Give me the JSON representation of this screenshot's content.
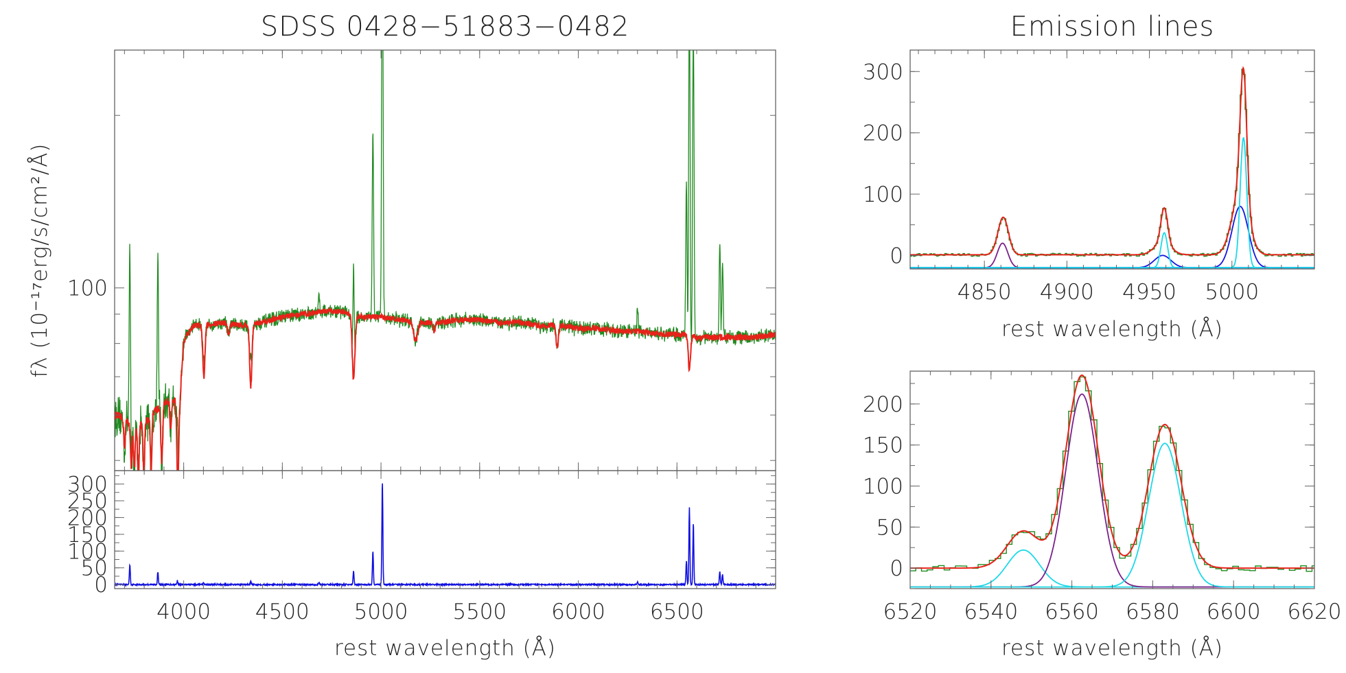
{
  "chart_data": [
    {
      "id": "main",
      "type": "line",
      "title": "SDSS 0428−51883−0482",
      "xlabel": "rest wavelength (Å)",
      "ylabel": "fλ (10⁻¹⁷erg/s/cm²/Å)",
      "xlim": [
        3650,
        7000
      ],
      "yscale": "log",
      "ylim": [
        48,
        260
      ],
      "y_tick_labels": [
        {
          "value": 100,
          "label": "100"
        }
      ],
      "x_tick_labels": [],
      "colors": {
        "data": "#1f8a1f",
        "model": "#e8221a"
      },
      "continuum": [
        [
          3650,
          60
        ],
        [
          3700,
          59
        ],
        [
          3750,
          57
        ],
        [
          3800,
          58
        ],
        [
          3850,
          61
        ],
        [
          3900,
          63
        ],
        [
          3950,
          64
        ],
        [
          3980,
          63
        ],
        [
          4000,
          81
        ],
        [
          4050,
          86
        ],
        [
          4100,
          86
        ],
        [
          4200,
          87
        ],
        [
          4300,
          86
        ],
        [
          4400,
          87
        ],
        [
          4500,
          89
        ],
        [
          4600,
          90
        ],
        [
          4700,
          91
        ],
        [
          4800,
          91
        ],
        [
          4860,
          90
        ],
        [
          4900,
          89
        ],
        [
          5000,
          89
        ],
        [
          5100,
          88
        ],
        [
          5200,
          87
        ],
        [
          5300,
          87
        ],
        [
          5400,
          88
        ],
        [
          5500,
          88
        ],
        [
          5600,
          87
        ],
        [
          5700,
          87
        ],
        [
          5800,
          86
        ],
        [
          5900,
          86
        ],
        [
          6000,
          85
        ],
        [
          6100,
          85
        ],
        [
          6200,
          84
        ],
        [
          6300,
          84
        ],
        [
          6400,
          83
        ],
        [
          6500,
          83
        ],
        [
          6560,
          83
        ],
        [
          6600,
          82
        ],
        [
          6700,
          82
        ],
        [
          6800,
          82
        ],
        [
          6900,
          82
        ],
        [
          7000,
          83
        ]
      ],
      "model_absorption": [
        {
          "x": 3700,
          "depth": 6,
          "width": 4
        },
        {
          "x": 3734,
          "depth": 9,
          "width": 4
        },
        {
          "x": 3750,
          "depth": 9,
          "width": 4
        },
        {
          "x": 3770,
          "depth": 10,
          "width": 4
        },
        {
          "x": 3798,
          "depth": 11,
          "width": 4
        },
        {
          "x": 3835,
          "depth": 12,
          "width": 4
        },
        {
          "x": 3889,
          "depth": 13,
          "width": 5
        },
        {
          "x": 3934,
          "depth": 7,
          "width": 4
        },
        {
          "x": 3970,
          "depth": 19,
          "width": 5
        },
        {
          "x": 4102,
          "depth": 16,
          "width": 6
        },
        {
          "x": 4227,
          "depth": 4,
          "width": 5
        },
        {
          "x": 4340,
          "depth": 19,
          "width": 6
        },
        {
          "x": 4861,
          "depth": 21,
          "width": 7
        },
        {
          "x": 5175,
          "depth": 6,
          "width": 10
        },
        {
          "x": 5269,
          "depth": 3,
          "width": 6
        },
        {
          "x": 5893,
          "depth": 7,
          "width": 6
        },
        {
          "x": 6563,
          "depth": 11,
          "width": 6
        }
      ],
      "emission_lines": [
        {
          "x": 3727,
          "peak": 64
        },
        {
          "x": 3869,
          "peak": 52
        },
        {
          "x": 3968,
          "peak": 12
        },
        {
          "x": 4101,
          "peak": 6
        },
        {
          "x": 4340,
          "peak": 10
        },
        {
          "x": 4686,
          "peak": 7
        },
        {
          "x": 4861,
          "peak": 40
        },
        {
          "x": 4959,
          "peak": 100
        },
        {
          "x": 5007,
          "peak": 310
        },
        {
          "x": 6300,
          "peak": 8
        },
        {
          "x": 6548,
          "peak": 70
        },
        {
          "x": 6563,
          "peak": 240
        },
        {
          "x": 6583,
          "peak": 200
        },
        {
          "x": 6717,
          "peak": 38
        },
        {
          "x": 6731,
          "peak": 30
        }
      ]
    },
    {
      "id": "residual",
      "type": "line",
      "xlabel": "rest wavelength (Å)",
      "xlim": [
        3650,
        7000
      ],
      "ylim": [
        -12,
        340
      ],
      "x_tick_labels": [
        {
          "value": 4000,
          "label": "4000"
        },
        {
          "value": 4500,
          "label": "4500"
        },
        {
          "value": 5000,
          "label": "5000"
        },
        {
          "value": 5500,
          "label": "5500"
        },
        {
          "value": 6000,
          "label": "6000"
        },
        {
          "value": 6500,
          "label": "6500"
        }
      ],
      "y_tick_labels": [
        {
          "value": 0,
          "label": "0"
        },
        {
          "value": 50,
          "label": "50"
        },
        {
          "value": 100,
          "label": "100"
        },
        {
          "value": 150,
          "label": "150"
        },
        {
          "value": 200,
          "label": "200"
        },
        {
          "value": 250,
          "label": "250"
        },
        {
          "value": 300,
          "label": "300"
        }
      ],
      "colors": {
        "data": "#1010e0"
      },
      "emission_lines": [
        {
          "x": 3727,
          "peak": 60
        },
        {
          "x": 3869,
          "peak": 38
        },
        {
          "x": 3968,
          "peak": 12
        },
        {
          "x": 4101,
          "peak": 6
        },
        {
          "x": 4340,
          "peak": 10
        },
        {
          "x": 4686,
          "peak": 7
        },
        {
          "x": 4861,
          "peak": 40
        },
        {
          "x": 4959,
          "peak": 100
        },
        {
          "x": 5007,
          "peak": 310
        },
        {
          "x": 6300,
          "peak": 8
        },
        {
          "x": 6548,
          "peak": 70
        },
        {
          "x": 6563,
          "peak": 230
        },
        {
          "x": 6583,
          "peak": 185
        },
        {
          "x": 6717,
          "peak": 38
        },
        {
          "x": 6731,
          "peak": 30
        }
      ]
    },
    {
      "id": "hbeta_oiii",
      "type": "line",
      "title": "Emission lines",
      "xlabel": "rest wavelength (Å)",
      "xlim": [
        4805,
        5050
      ],
      "ylim": [
        -22,
        335
      ],
      "x_tick_labels": [
        {
          "value": 4850,
          "label": "4850"
        },
        {
          "value": 4900,
          "label": "4900"
        },
        {
          "value": 4950,
          "label": "4950"
        },
        {
          "value": 5000,
          "label": "5000"
        }
      ],
      "y_tick_labels": [
        {
          "value": 0,
          "label": "0"
        },
        {
          "value": 100,
          "label": "100"
        },
        {
          "value": 200,
          "label": "200"
        },
        {
          "value": 300,
          "label": "300"
        }
      ],
      "colors": {
        "data": "#1f8a1f",
        "model": "#e8221a",
        "narrow": "#1bd9e8",
        "broad": "#1515e0",
        "hbeta": "#7a1f8a"
      },
      "components": [
        {
          "component": "hbeta",
          "x0": 4861,
          "amp": 40,
          "sigma": 3.2
        },
        {
          "component": "broad",
          "x0": 4958,
          "amp": 20,
          "sigma": 5.0
        },
        {
          "component": "narrow",
          "x0": 4959,
          "amp": 57,
          "sigma": 2.0
        },
        {
          "component": "broad",
          "x0": 5005,
          "amp": 100,
          "sigma": 5.0
        },
        {
          "component": "narrow",
          "x0": 5007,
          "amp": 212,
          "sigma": 2.0
        }
      ],
      "extra": [
        {
          "x0": 4862,
          "amp": 22,
          "sigma": 3.0
        }
      ],
      "offset": 1
    },
    {
      "id": "halpha_nii",
      "type": "line",
      "xlabel": "rest wavelength (Å)",
      "xlim": [
        6520,
        6620
      ],
      "ylim": [
        -25,
        240
      ],
      "x_tick_labels": [
        {
          "value": 6520,
          "label": "6520"
        },
        {
          "value": 6540,
          "label": "6540"
        },
        {
          "value": 6560,
          "label": "6560"
        },
        {
          "value": 6580,
          "label": "6580"
        },
        {
          "value": 6600,
          "label": "6600"
        },
        {
          "value": 6620,
          "label": "6620"
        }
      ],
      "y_tick_labels": [
        {
          "value": 0,
          "label": "0"
        },
        {
          "value": 50,
          "label": "50"
        },
        {
          "value": 100,
          "label": "100"
        },
        {
          "value": 150,
          "label": "150"
        },
        {
          "value": 200,
          "label": "200"
        }
      ],
      "colors": {
        "data": "#1f8a1f",
        "model": "#e8221a",
        "narrow": "#1bd9e8",
        "broad": "#1515e0",
        "hbeta": "#7a1f8a"
      },
      "components": [
        {
          "component": "narrow",
          "x0": 6548,
          "amp": 45,
          "sigma": 4.0
        },
        {
          "component": "hbeta",
          "x0": 6562.5,
          "amp": 235,
          "sigma": 4.0
        },
        {
          "component": "narrow",
          "x0": 6583,
          "amp": 175,
          "sigma": 4.0
        }
      ],
      "extra": [],
      "offset": 0
    }
  ]
}
